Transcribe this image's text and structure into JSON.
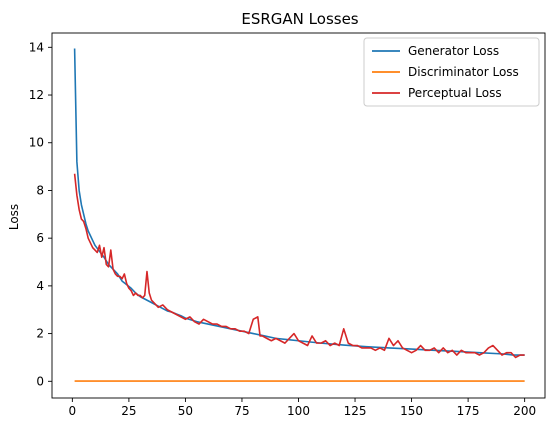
{
  "chart_data": {
    "type": "line",
    "title": "ESRGAN Losses",
    "xlabel": "",
    "ylabel": "Loss",
    "xlim": [
      -9,
      209
    ],
    "ylim": [
      -0.7,
      14.6
    ],
    "xticks": [
      0,
      25,
      50,
      75,
      100,
      125,
      150,
      175,
      200
    ],
    "yticks": [
      0,
      2,
      4,
      6,
      8,
      10,
      12,
      14
    ],
    "grid": false,
    "legend_position": "top-right",
    "series": [
      {
        "name": "Generator Loss",
        "color": "#1f77b4",
        "x": [
          1,
          2,
          3,
          4,
          5,
          6,
          7,
          8,
          9,
          10,
          12,
          14,
          16,
          18,
          20,
          22,
          24,
          26,
          28,
          30,
          32,
          34,
          36,
          38,
          40,
          42,
          44,
          46,
          48,
          50,
          55,
          60,
          65,
          70,
          75,
          80,
          85,
          90,
          95,
          100,
          110,
          120,
          130,
          140,
          150,
          160,
          170,
          180,
          190,
          195,
          200
        ],
        "y": [
          13.95,
          9.2,
          8.0,
          7.4,
          7.0,
          6.6,
          6.3,
          6.1,
          5.9,
          5.7,
          5.45,
          5.2,
          4.9,
          4.7,
          4.5,
          4.2,
          4.05,
          3.9,
          3.7,
          3.55,
          3.45,
          3.35,
          3.25,
          3.15,
          3.05,
          2.95,
          2.9,
          2.82,
          2.75,
          2.65,
          2.5,
          2.4,
          2.3,
          2.2,
          2.1,
          2.0,
          1.9,
          1.8,
          1.75,
          1.7,
          1.6,
          1.52,
          1.45,
          1.4,
          1.35,
          1.3,
          1.25,
          1.2,
          1.15,
          1.1,
          1.1
        ]
      },
      {
        "name": "Discriminator Loss",
        "color": "#ff7f0e",
        "x": [
          1,
          200
        ],
        "y": [
          0.01,
          0.01
        ]
      },
      {
        "name": "Perceptual Loss",
        "color": "#d62728",
        "x": [
          1,
          2,
          3,
          4,
          5,
          6,
          7,
          8,
          9,
          10,
          11,
          12,
          13,
          14,
          15,
          16,
          17,
          18,
          19,
          20,
          21,
          22,
          23,
          24,
          25,
          26,
          27,
          28,
          29,
          30,
          31,
          32,
          33,
          34,
          35,
          36,
          37,
          38,
          40,
          42,
          44,
          46,
          48,
          50,
          52,
          54,
          56,
          58,
          60,
          62,
          64,
          66,
          68,
          70,
          72,
          74,
          76,
          78,
          80,
          82,
          83,
          84,
          86,
          88,
          90,
          92,
          94,
          96,
          98,
          100,
          102,
          104,
          106,
          108,
          110,
          112,
          114,
          116,
          118,
          120,
          121,
          122,
          124,
          126,
          128,
          130,
          132,
          134,
          136,
          138,
          140,
          142,
          144,
          146,
          148,
          150,
          152,
          154,
          156,
          158,
          160,
          162,
          164,
          166,
          168,
          170,
          172,
          174,
          176,
          178,
          180,
          182,
          184,
          186,
          188,
          190,
          192,
          194,
          196,
          198,
          200
        ],
        "y": [
          8.7,
          7.8,
          7.2,
          6.8,
          6.7,
          6.4,
          6.0,
          5.8,
          5.6,
          5.5,
          5.4,
          5.7,
          5.2,
          5.6,
          4.9,
          4.8,
          5.5,
          4.7,
          4.5,
          4.4,
          4.4,
          4.3,
          4.5,
          4.1,
          3.9,
          3.8,
          3.6,
          3.7,
          3.6,
          3.6,
          3.5,
          3.6,
          4.6,
          3.7,
          3.4,
          3.3,
          3.2,
          3.1,
          3.2,
          3.0,
          2.9,
          2.8,
          2.7,
          2.6,
          2.7,
          2.5,
          2.4,
          2.6,
          2.5,
          2.4,
          2.4,
          2.3,
          2.3,
          2.2,
          2.2,
          2.1,
          2.1,
          2.0,
          2.6,
          2.7,
          1.9,
          1.9,
          1.8,
          1.7,
          1.8,
          1.7,
          1.6,
          1.8,
          2.0,
          1.7,
          1.6,
          1.5,
          1.9,
          1.6,
          1.6,
          1.7,
          1.5,
          1.6,
          1.5,
          2.2,
          1.9,
          1.6,
          1.5,
          1.5,
          1.4,
          1.4,
          1.4,
          1.3,
          1.4,
          1.3,
          1.8,
          1.5,
          1.7,
          1.4,
          1.3,
          1.2,
          1.3,
          1.5,
          1.3,
          1.3,
          1.4,
          1.2,
          1.4,
          1.2,
          1.3,
          1.1,
          1.3,
          1.2,
          1.2,
          1.2,
          1.1,
          1.2,
          1.4,
          1.5,
          1.3,
          1.1,
          1.2,
          1.2,
          1.0,
          1.1,
          1.1
        ]
      }
    ]
  }
}
